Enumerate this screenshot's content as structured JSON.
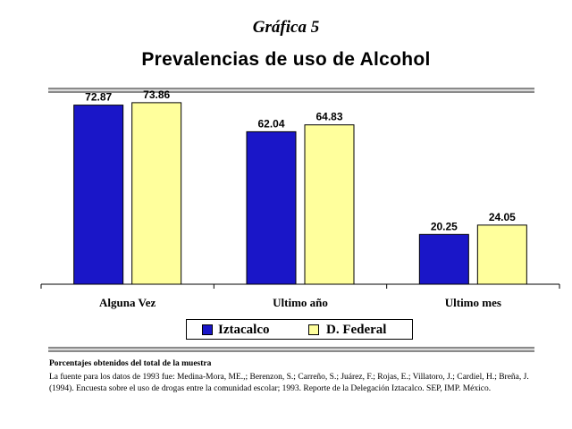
{
  "header": {
    "kicker": "Gráfica 5",
    "title": "Prevalencias de uso de Alcohol"
  },
  "colors": {
    "iztacalco": "#1a16c8",
    "dfederal": "#ffff9c",
    "axis": "#000000"
  },
  "chart_data": {
    "type": "bar",
    "title": "Prevalencias de uso de Alcohol",
    "categories": [
      "Alguna Vez",
      "Ultimo año",
      "Ultimo mes"
    ],
    "series": [
      {
        "name": "Iztacalco",
        "values": [
          72.87,
          62.04,
          20.25
        ],
        "labels": [
          "72.87",
          "62.04",
          "20.25"
        ]
      },
      {
        "name": "D. Federal",
        "values": [
          73.86,
          64.83,
          24.05
        ],
        "labels": [
          "73.86",
          "64.83",
          "24.05"
        ]
      }
    ],
    "ylim": [
      0,
      80
    ],
    "grid": false,
    "legend_position": "bottom"
  },
  "notes": {
    "heading": "Porcentajes obtenidos del total de la muestra",
    "body": "La fuente para los datos de 1993 fue: Medina-Mora, ME.,; Berenzon, S.; Carreño, S.; Juárez, F.; Rojas, E.; Villatoro, J.; Cardiel, H.; Breña, J. (1994). Encuesta sobre el uso de drogas entre la comunidad escolar; 1993. Reporte de la Delegación Iztacalco. SEP, IMP. México."
  }
}
